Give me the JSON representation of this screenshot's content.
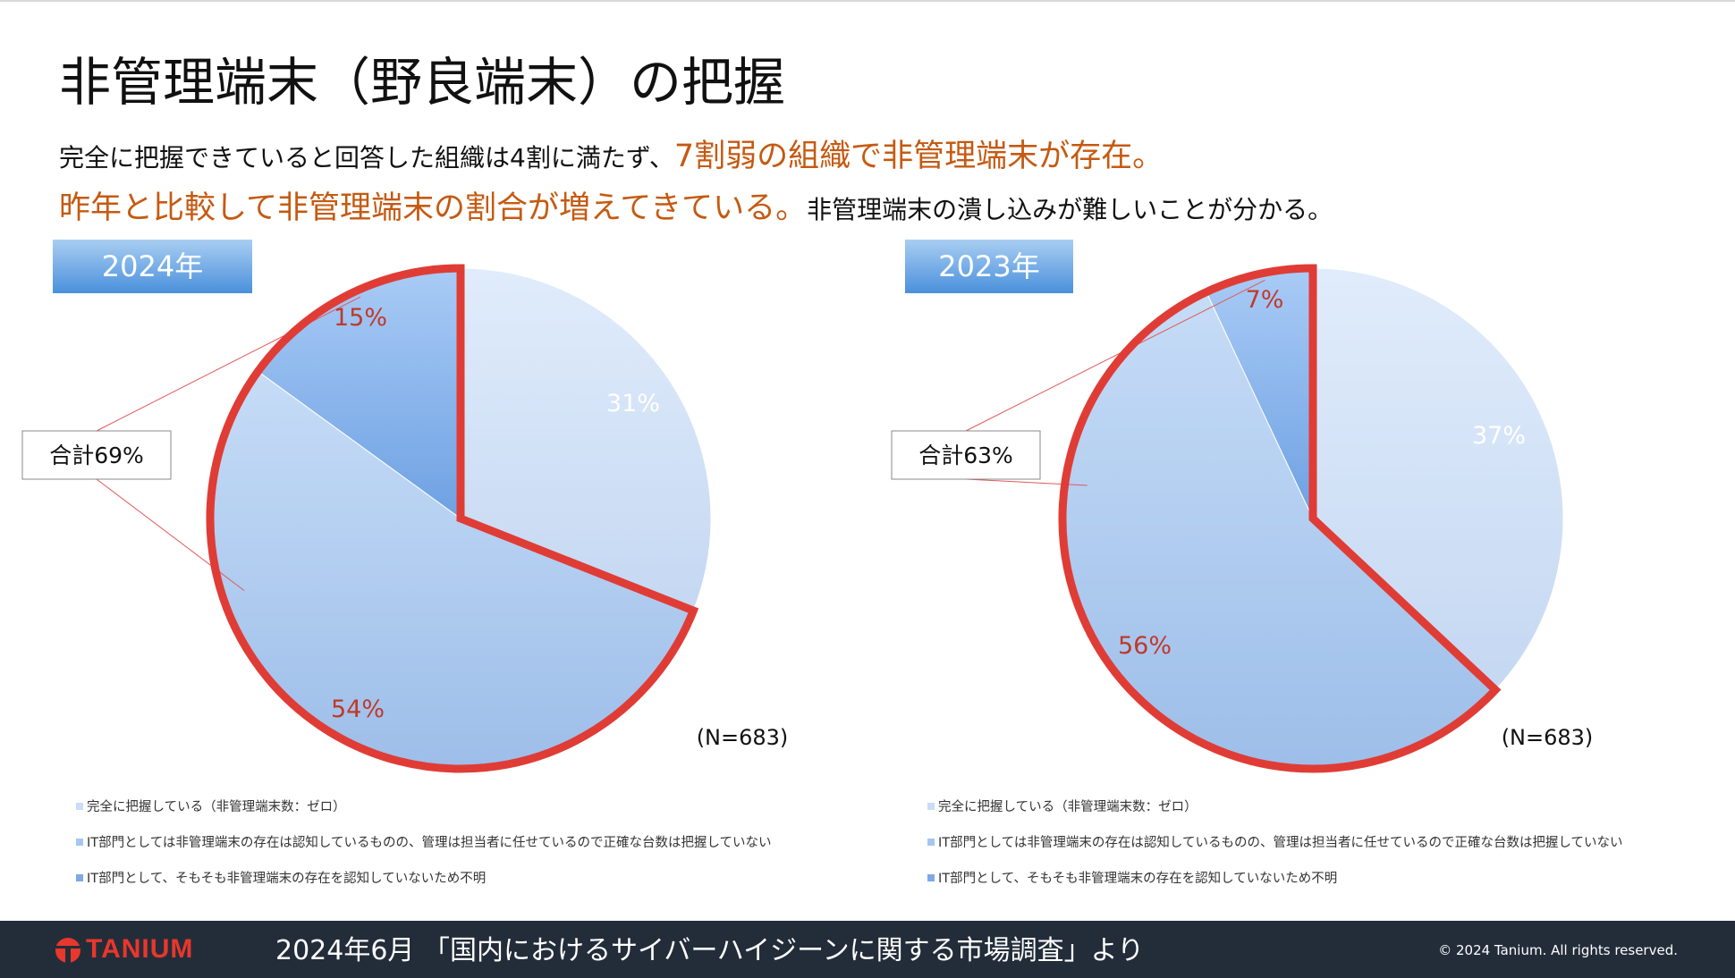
{
  "title": "非管理端末（野良端末）の把握",
  "subtitle": {
    "line1_normal": "完全に把握できていると回答した組織は4割に満たず、",
    "line1_highlight": "7割弱の組織で非管理端末が存在。",
    "line2_highlight": "昨年と比較して非管理端末の割合が増えてきている。",
    "line2_normal": "非管理端末の潰し込みが難しいことが分かる。"
  },
  "colors": {
    "highlight": "#c55a11",
    "outline": "#e03c36",
    "label_red": "#c0392b",
    "footer": "#232d3a"
  },
  "chart_data": [
    {
      "type": "pie",
      "year_label": "2024年",
      "categories": [
        "完全に把握している（非管理端末数：ゼロ）",
        "IT部門としては非管理端末の存在は認知しているものの、管理は担当者に任せているので正確な台数は把握していない",
        "IT部門として、そもそも非管理端末の存在を認知していないため不明"
      ],
      "values": [
        31,
        54,
        15
      ],
      "value_labels": [
        "31%",
        "54%",
        "15%"
      ],
      "total_label": "合計69%",
      "n_label": "(N=683)",
      "legend_position": "bottom"
    },
    {
      "type": "pie",
      "year_label": "2023年",
      "categories": [
        "完全に把握している（非管理端末数：ゼロ）",
        "IT部門としては非管理端末の存在は認知しているものの、管理は担当者に任せているので正確な台数は把握していない",
        "IT部門として、そもそも非管理端末の存在を認知していないため不明"
      ],
      "values": [
        37,
        56,
        7
      ],
      "value_labels": [
        "37%",
        "56%",
        "7%"
      ],
      "total_label": "合計63%",
      "n_label": "(N=683)",
      "legend_position": "bottom"
    }
  ],
  "footer": {
    "logo": "TANIUM",
    "source": "2024年6月 「国内におけるサイバーハイジーンに関する市場調査」より",
    "copyright": "© 2024 Tanium. All rights reserved."
  }
}
